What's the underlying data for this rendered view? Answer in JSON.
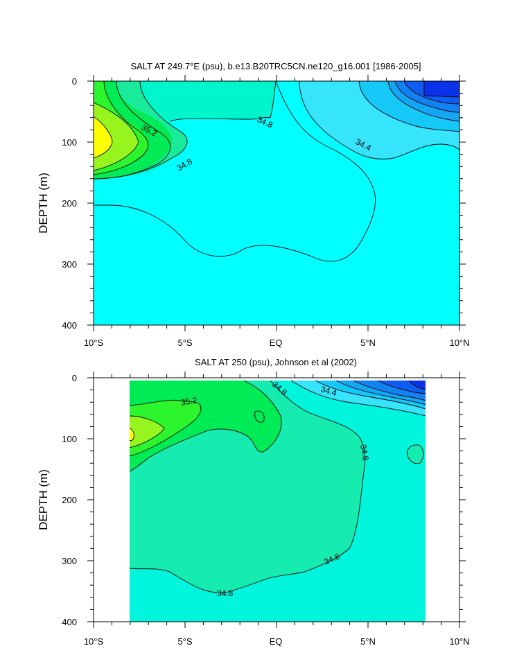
{
  "chart_data": [
    {
      "type": "heatmap",
      "subtype": "filled-contour",
      "title": "SALT AT 249.7°E (psu), b.e13.B20TRC5CN.ne120_g16.001 [1986-2005]",
      "xlabel": "",
      "ylabel": "DEPTH (m)",
      "xlim": [
        -10,
        10
      ],
      "ylim": [
        400,
        0
      ],
      "x_ticks": [
        "10°S",
        "5°S",
        "EQ",
        "5°N",
        "10°N"
      ],
      "y_ticks": [
        "0",
        "100",
        "200",
        "300",
        "400"
      ],
      "contour_labels": [
        "35.2",
        "34.8",
        "34.8",
        "34.4"
      ],
      "levels": [
        {
          "value": 34.0,
          "color": "#0a32e8"
        },
        {
          "value": 34.1,
          "color": "#0f5cf0"
        },
        {
          "value": 34.2,
          "color": "#1282f2"
        },
        {
          "value": 34.3,
          "color": "#14a5f5"
        },
        {
          "value": 34.4,
          "color": "#16c8f8"
        },
        {
          "value": 34.6,
          "color": "#36e4fc"
        },
        {
          "value": 34.7,
          "color": "#00ffff"
        },
        {
          "value": 34.8,
          "color": "#00f5cc"
        },
        {
          "value": 35.0,
          "color": "#1aeb9a"
        },
        {
          "value": 35.1,
          "color": "#00eb55"
        },
        {
          "value": 35.2,
          "color": "#2df52d"
        },
        {
          "value": 35.3,
          "color": "#97f51f"
        },
        {
          "value": 35.4,
          "color": "#ffff00"
        }
      ],
      "grid": false,
      "legend": "none"
    },
    {
      "type": "heatmap",
      "subtype": "filled-contour",
      "title": "SALT AT 250 (psu), Johnson et al (2002)",
      "xlabel": "",
      "ylabel": "DEPTH (m)",
      "xlim": [
        -10,
        10
      ],
      "ylim": [
        400,
        0
      ],
      "data_extent_x": [
        -8,
        8.2
      ],
      "data_extent_y": [
        5,
        400
      ],
      "x_ticks": [
        "10°S",
        "5°S",
        "EQ",
        "5°N",
        "10°N"
      ],
      "y_ticks": [
        "0",
        "100",
        "200",
        "300",
        "400"
      ],
      "contour_labels": [
        "35.2",
        "34.8",
        "34.4",
        "34.8",
        "34.8",
        "34.8"
      ],
      "grid": false,
      "legend": "none"
    }
  ]
}
